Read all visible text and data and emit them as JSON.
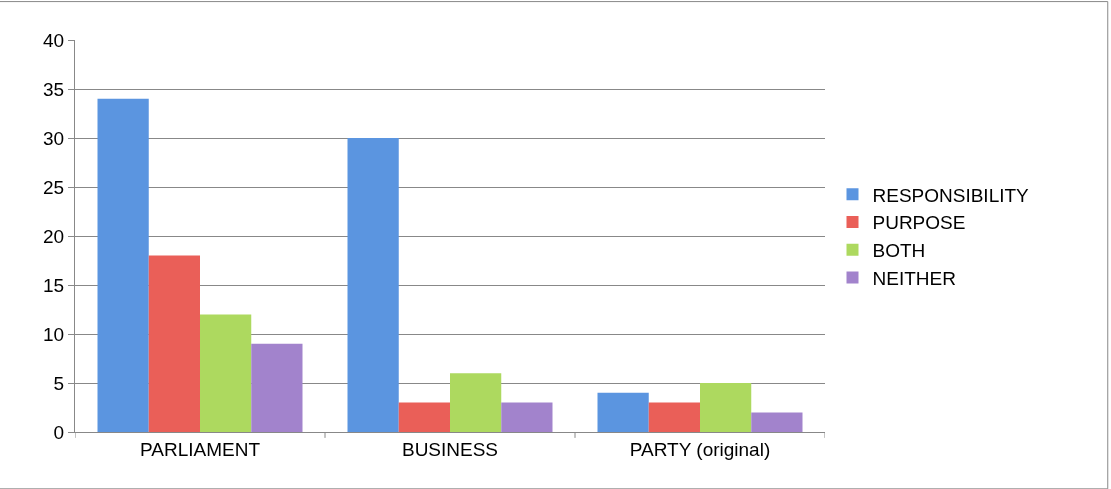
{
  "chart_data": {
    "type": "bar",
    "categories": [
      "PARLIAMENT",
      "BUSINESS",
      "PARTY (original)"
    ],
    "series": [
      {
        "name": "RESPONSIBILITY",
        "color": "#5b95e0",
        "values": [
          34,
          30,
          4
        ]
      },
      {
        "name": "PURPOSE",
        "color": "#ea5f58",
        "values": [
          18,
          3,
          3
        ]
      },
      {
        "name": "BOTH",
        "color": "#add95f",
        "values": [
          12,
          6,
          5
        ]
      },
      {
        "name": "NEITHER",
        "color": "#a283cc",
        "values": [
          9,
          3,
          2
        ]
      }
    ],
    "ylim": [
      0,
      40
    ],
    "yticks": [
      0,
      5,
      10,
      15,
      20,
      25,
      30,
      35,
      40
    ],
    "grid": "y",
    "legend": "right"
  }
}
